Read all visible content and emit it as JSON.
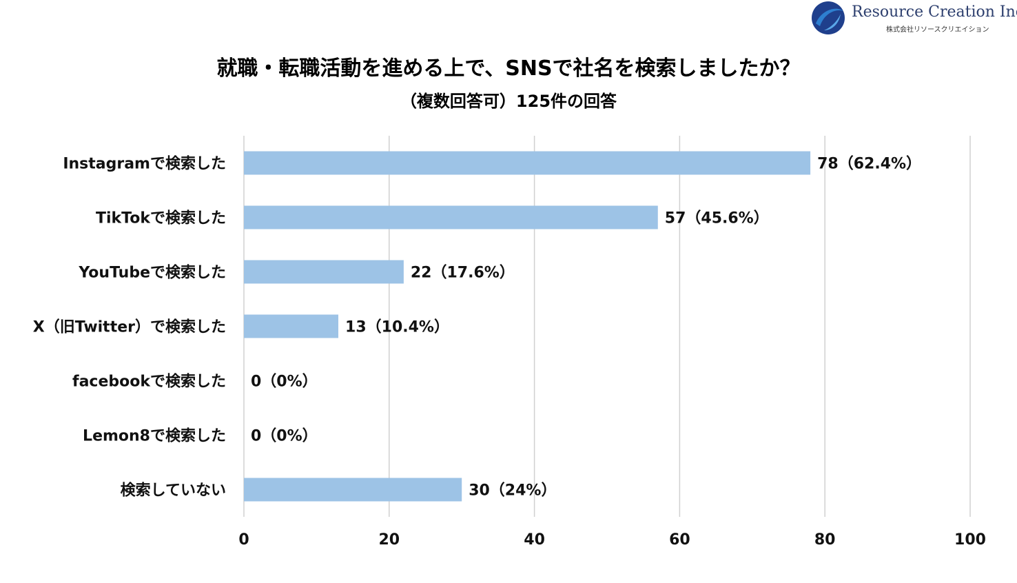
{
  "logo": {
    "name": "Resource Creation Inc.",
    "subname": "株式会社リソースクリエイション",
    "colors": {
      "primary": "#1f3f8c",
      "accent": "#2e7fd0"
    }
  },
  "chart_data": {
    "type": "bar",
    "orientation": "horizontal",
    "title": "就職・転職活動を進める上で、SNSで社名を検索しましたか？",
    "subtitle": "（複数回答可）125件の回答",
    "categories": [
      "Instagramで検索した",
      "TikTokで検索した",
      "YouTubeで検索した",
      "X（旧Twitter）で検索した",
      "facebookで検索した",
      "Lemon8で検索した",
      "検索していない"
    ],
    "values": [
      78,
      57,
      22,
      13,
      0,
      0,
      30
    ],
    "data_labels": [
      "78（62.4%）",
      "57（45.6%）",
      "22（17.6%）",
      "13（10.4%）",
      "0（0%）",
      "0（0%）",
      "30（24%）"
    ],
    "xlim": [
      0,
      100
    ],
    "xticks": [
      0,
      20,
      40,
      60,
      80,
      100
    ],
    "xtick_labels": [
      "0",
      "20",
      "40",
      "60",
      "80",
      "100"
    ],
    "grid": true,
    "bar_color": "#9dc3e6",
    "grid_color": "#d0d0d0"
  }
}
